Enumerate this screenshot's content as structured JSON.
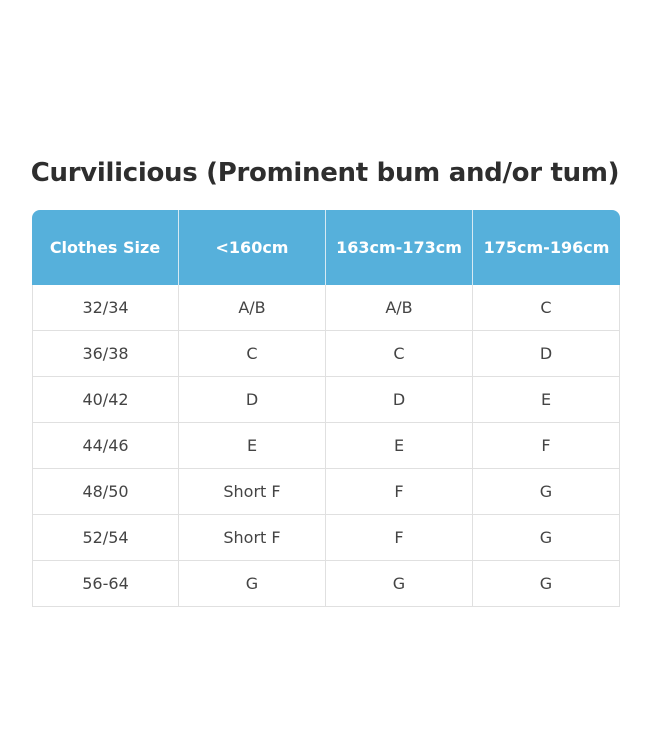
{
  "title": "Curvilicious (Prominent bum and/or tum)",
  "table": {
    "headers": [
      "Clothes Size",
      "<160cm",
      "163cm-173cm",
      "175cm-196cm"
    ],
    "rows": [
      [
        "32/34",
        "A/B",
        "A/B",
        "C"
      ],
      [
        "36/38",
        "C",
        "C",
        "D"
      ],
      [
        "40/42",
        "D",
        "D",
        "E"
      ],
      [
        "44/46",
        "E",
        "E",
        "F"
      ],
      [
        "48/50",
        "Short F",
        "F",
        "G"
      ],
      [
        "52/54",
        "Short F",
        "F",
        "G"
      ],
      [
        "56-64",
        "G",
        "G",
        "G"
      ]
    ]
  },
  "colors": {
    "header_bg": "#56b0db",
    "header_text": "#ffffff"
  }
}
